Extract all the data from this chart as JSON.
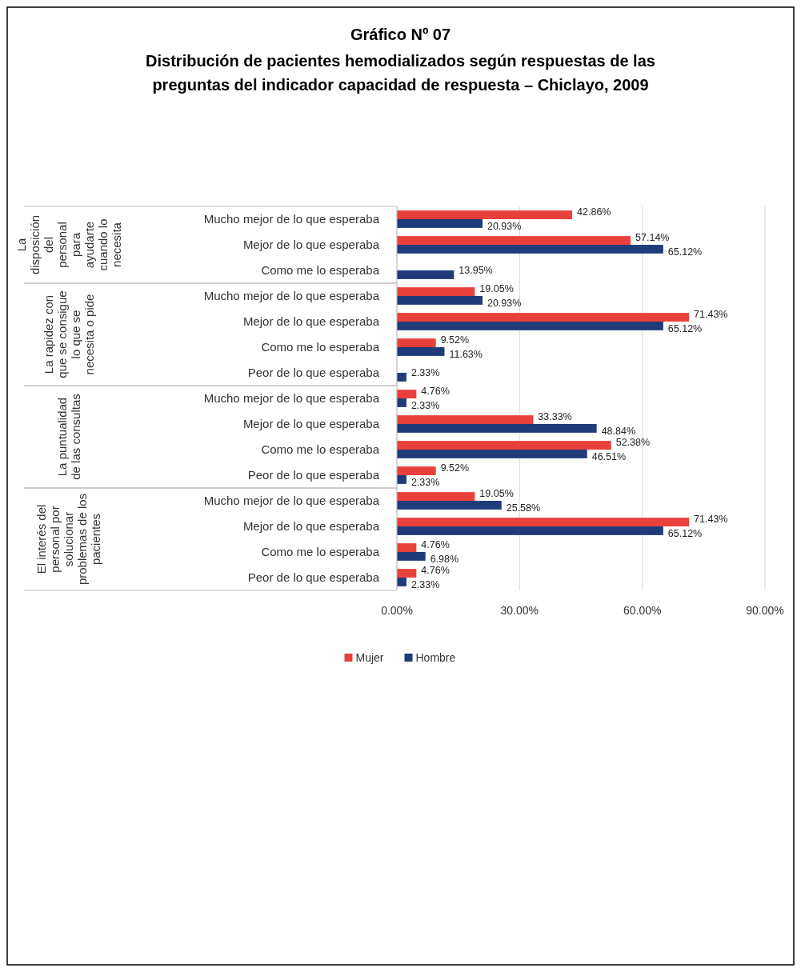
{
  "chart_data": {
    "type": "bar",
    "orientation": "horizontal",
    "title": "Gráfico Nº 07",
    "subtitle": "Distribución de pacientes hemodializados según respuestas de las preguntas del indicador capacidad de respuesta – Chiclayo, 2009",
    "categories": [
      "Mucho mejor de lo que esperaba",
      "Mejor de lo que esperaba",
      "Como me lo esperaba",
      "Mucho mejor de lo que esperaba",
      "Mejor de lo que esperaba",
      "Como me lo esperaba",
      "Peor de lo que esperaba",
      "Mucho mejor de lo que esperaba",
      "Mejor de lo que esperaba",
      "Como me lo esperaba",
      "Peor de lo que esperaba",
      "Mucho mejor de lo que esperaba",
      "Mejor de lo que esperaba",
      "Como me lo esperaba",
      "Peor de lo que esperaba"
    ],
    "annotations": [
      "La disposición del personal para ayudarte cuando lo necesita",
      "La rapidez con que se consigue lo que se necesita o pide",
      "La puntualidad de las consultas",
      "El interés del personal por solucionar problemas de los pacientes"
    ],
    "series": [
      {
        "name": "Mujer",
        "color": "#e8413c",
        "values": [
          42.86,
          57.14,
          null,
          19.05,
          71.43,
          9.52,
          null,
          4.76,
          33.33,
          52.38,
          9.52,
          19.05,
          71.43,
          4.76,
          4.76
        ],
        "value_labels": [
          "42.86%",
          "57.14%",
          null,
          "19.05%",
          "71.43%",
          "9.52%",
          null,
          "4.76%",
          "33.33%",
          "52.38%",
          "9.52%",
          "19.05%",
          "71.43%",
          "4.76%",
          "4.76%"
        ]
      },
      {
        "name": "Hombre",
        "color": "#1f3b7a",
        "values": [
          20.93,
          65.12,
          13.95,
          20.93,
          65.12,
          11.63,
          2.33,
          2.33,
          48.84,
          46.51,
          2.33,
          25.58,
          65.12,
          6.98,
          2.33
        ],
        "value_labels": [
          "20.93%",
          "65.12%",
          "13.95%",
          "20.93%",
          "65.12%",
          "11.63%",
          "2.33%",
          "2.33%",
          "48.84%",
          "46.51%",
          "2.33%",
          "25.58%",
          "65.12%",
          "6.98%",
          "2.33%"
        ]
      }
    ],
    "xlim": [
      0,
      90
    ],
    "xticks": [
      {
        "value": 0,
        "label": "0.00%"
      },
      {
        "value": 30,
        "label": "30.00%"
      },
      {
        "value": 60,
        "label": "60.00%"
      },
      {
        "value": 90,
        "label": "90.00%"
      }
    ],
    "grid": "x",
    "legend": "bottom"
  }
}
